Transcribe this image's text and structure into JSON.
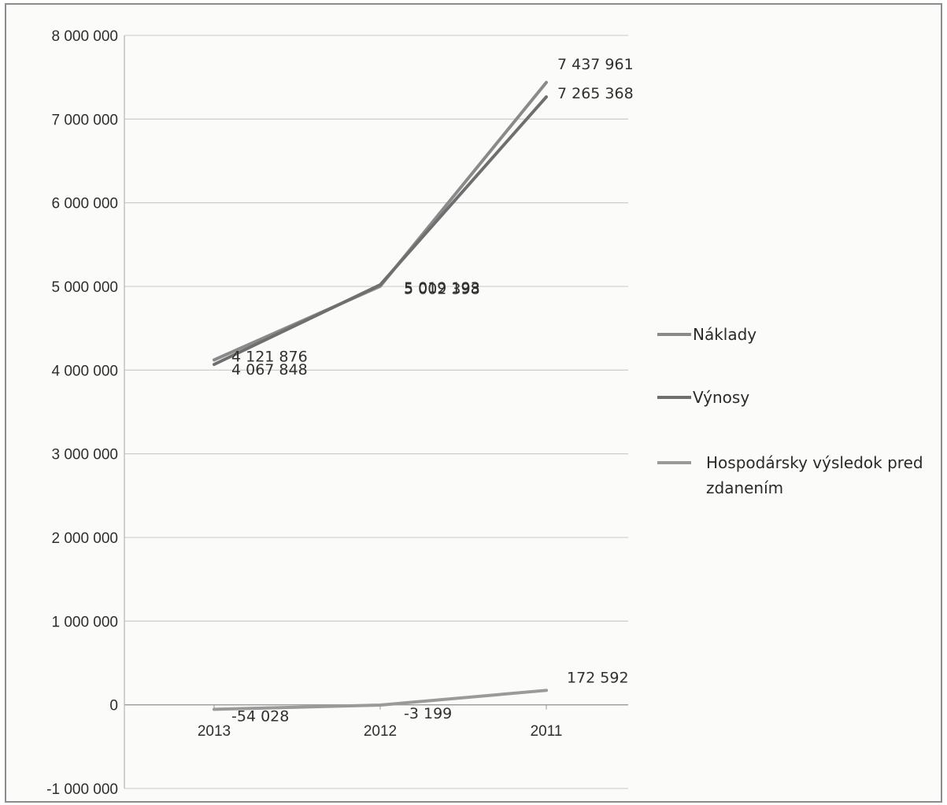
{
  "chart_data": {
    "type": "line",
    "categories": [
      "2013",
      "2012",
      "2011"
    ],
    "ylim": [
      -1000000,
      8000000
    ],
    "y_ticks": [
      8000000,
      7000000,
      6000000,
      5000000,
      4000000,
      3000000,
      2000000,
      1000000,
      0,
      -1000000
    ],
    "y_tick_labels": [
      "8 000 000",
      "7 000 000",
      "6 000 000",
      "5 000 000",
      "4 000 000",
      "3 000 000",
      "2 000 000",
      "1 000 000",
      "0",
      "-1 000 000"
    ],
    "grid": true,
    "legend_position": "right",
    "series": [
      {
        "name": "Náklady",
        "values": [
          4121876,
          5002398,
          7437961
        ],
        "labels": [
          "4 121 876",
          "5 002 398",
          "7 437 961"
        ],
        "color": "#8a8a8a"
      },
      {
        "name": "Výnosy",
        "values": [
          4067848,
          5019193,
          7265368
        ],
        "labels": [
          "4 067 848",
          "5 019 193",
          "7 265 368"
        ],
        "color": "#6f6f6f"
      },
      {
        "name": "Hospodársky výsledok pred zdanením",
        "values": [
          -54028,
          -3199,
          172592
        ],
        "labels": [
          "-54 028",
          "-3 199",
          "172 592"
        ],
        "color": "#9a9a9a"
      }
    ]
  }
}
